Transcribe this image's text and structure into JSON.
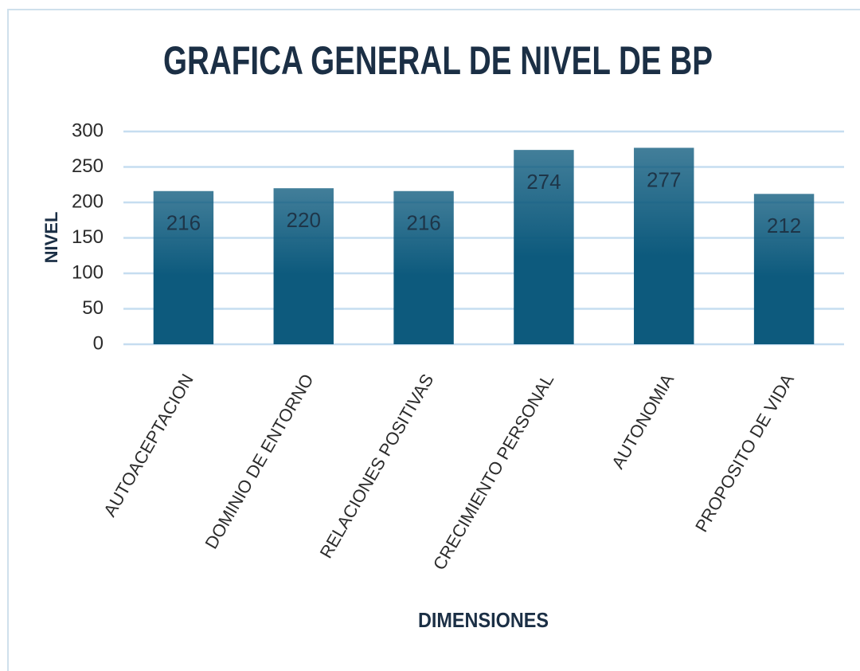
{
  "chart_data": {
    "type": "bar",
    "title": "GRAFICA GENERAL DE NIVEL DE BP",
    "x_label": "DIMENSIONES",
    "y_label": "NIVEL",
    "categories": [
      "AUTOACEPTACION",
      "DOMINIO DE ENTORNO",
      "RELACIONES POSITIVAS",
      "CRECIMIENTO PERSONAL",
      "AUTONOMIA",
      "PROPOSITO DE VIDA"
    ],
    "values": [
      216,
      220,
      216,
      274,
      277,
      212
    ],
    "color": "#0d5a7d",
    "ylim": [
      0,
      300
    ],
    "yticks": [
      0,
      50,
      100,
      150,
      200,
      250,
      300
    ],
    "grid": true
  }
}
